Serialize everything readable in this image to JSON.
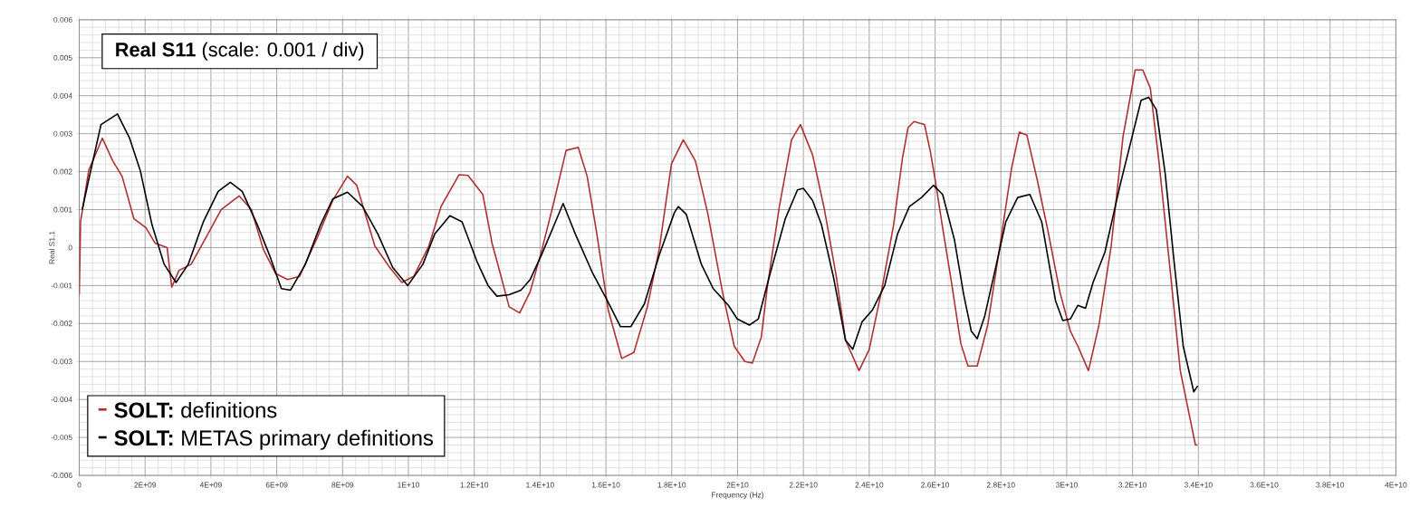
{
  "chart_data": {
    "type": "line",
    "title": "**Real S11** (scale: 0.001 / div)",
    "xlabel": "Frequency (Hz)",
    "ylabel": "Real S1,1",
    "xlim": [
      0,
      40000000000.0
    ],
    "ylim": [
      -0.006,
      0.006
    ],
    "xticks": [
      0,
      {
        "value": 2000000000.0,
        "label": "2E+09"
      },
      {
        "value": 4000000000.0,
        "label": "4E+09"
      },
      {
        "value": 6000000000.0,
        "label": "6E+09"
      },
      {
        "value": 8000000000.0,
        "label": "8E+09"
      },
      {
        "value": 10000000000.0,
        "label": "1E+10"
      },
      {
        "value": 12000000000.0,
        "label": "1.2E+10"
      },
      {
        "value": 14000000000.0,
        "label": "1.4E+10"
      },
      {
        "value": 16000000000.0,
        "label": "1.6E+10"
      },
      {
        "value": 18000000000.0,
        "label": "1.8E+10"
      },
      {
        "value": 20000000000.0,
        "label": "2E+10"
      },
      {
        "value": 22000000000.0,
        "label": "2.2E+10"
      },
      {
        "value": 24000000000.0,
        "label": "2.4E+10"
      },
      {
        "value": 26000000000.0,
        "label": "2.6E+10"
      },
      {
        "value": 28000000000.0,
        "label": "2.8E+10"
      },
      {
        "value": 30000000000.0,
        "label": "3E+10"
      },
      {
        "value": 32000000000.0,
        "label": "3.2E+10"
      },
      {
        "value": 34000000000.0,
        "label": "3.4E+10"
      },
      {
        "value": 36000000000.0,
        "label": "3.6E+10"
      },
      {
        "value": 38000000000.0,
        "label": "3.8E+10"
      },
      {
        "value": 40000000000.0,
        "label": "4E+10"
      }
    ],
    "yticks": [
      -0.006,
      -0.005,
      -0.004,
      -0.003,
      -0.002,
      -0.001,
      0,
      0.001,
      0.002,
      0.003,
      0.004,
      0.005,
      0.006
    ],
    "grid": true,
    "legend": "bottom left",
    "series": [
      {
        "name": "**SOLT:** definitions",
        "color": "#b03030",
        "x": [
          0,
          40000000.0,
          290000000.0,
          700000000.0,
          1020000000.0,
          1300000000.0,
          1660000000.0,
          2030000000.0,
          2300000000.0,
          2670000000.0,
          2810000000.0,
          3030000000.0,
          3400000000.0,
          3860000000.0,
          4310000000.0,
          4860000000.0,
          5230000000.0,
          5590000000.0,
          5960000000.0,
          6330000000.0,
          6690000000.0,
          7240000000.0,
          7700000000.0,
          8150000000.0,
          8430000000.0,
          8980000000.0,
          9430000000.0,
          9800000000.0,
          10160000000.0,
          10620000000.0,
          10990000000.0,
          11540000000.0,
          11810000000.0,
          12260000000.0,
          12540000000.0,
          12790000000.0,
          13060000000.0,
          13380000000.0,
          13700000000.0,
          14060000000.0,
          14430000000.0,
          14790000000.0,
          15160000000.0,
          15430000000.0,
          15710000000.0,
          16070000000.0,
          16480000000.0,
          16850000000.0,
          17260000000.0,
          17620000000.0,
          17990000000.0,
          18350000000.0,
          18720000000.0,
          19090000000.0,
          19540000000.0,
          19900000000.0,
          20220000000.0,
          20450000000.0,
          20720000000.0,
          20910000000.0,
          21270000000.0,
          21640000000.0,
          21910000000.0,
          22280000000.0,
          22640000000.0,
          23000000000.0,
          23280000000.0,
          23690000000.0,
          24000000000.0,
          24370000000.0,
          24740000000.0,
          25010000000.0,
          25180000000.0,
          25360000000.0,
          25680000000.0,
          25860000000.0,
          26000000000.0,
          26230000000.0,
          26500000000.0,
          26780000000.0,
          27000000000.0,
          27280000000.0,
          27600000000.0,
          27970000000.0,
          28330000000.0,
          28560000000.0,
          28790000000.0,
          29100000000.0,
          29430000000.0,
          29790000000.0,
          30110000000.0,
          30340000000.0,
          30660000000.0,
          30980000000.0,
          31350000000.0,
          31710000000.0,
          32080000000.0,
          32310000000.0,
          32540000000.0,
          32810000000.0,
          33180000000.0,
          33450000000.0,
          33910000000.0,
          33980000000.0
        ],
        "values": [
          -0.00124,
          0.00068,
          0.00204,
          0.00288,
          0.00228,
          0.00188,
          0.00076,
          0.00052,
          0.00012,
          0,
          -0.00104,
          -0.0006,
          -0.00044,
          0.00028,
          0.001,
          0.00136,
          0.001,
          -4e-05,
          -0.00068,
          -0.00084,
          -0.00076,
          0.00028,
          0.00124,
          0.00188,
          0.00164,
          4e-05,
          -0.00052,
          -0.00092,
          -0.00076,
          4e-05,
          0.00108,
          0.00192,
          0.0019,
          0.0014,
          0.00012,
          -0.00068,
          -0.00156,
          -0.00172,
          -0.00116,
          -4e-05,
          0.00124,
          0.00256,
          0.00264,
          0.00188,
          0.00044,
          -0.00164,
          -0.00292,
          -0.00276,
          -0.00156,
          -4e-05,
          0.0022,
          0.00284,
          0.00228,
          0.00092,
          -0.00116,
          -0.0026,
          -0.003,
          -0.00304,
          -0.00236,
          -0.001,
          0.00108,
          0.00284,
          0.00324,
          0.00244,
          0.001,
          -0.00076,
          -0.00244,
          -0.00324,
          -0.00268,
          -0.00116,
          0.0006,
          0.00236,
          0.00316,
          0.00332,
          0.00324,
          0.00252,
          0.0018,
          0.00052,
          -0.00092,
          -0.00252,
          -0.00312,
          -0.00312,
          -0.00204,
          4e-05,
          0.00212,
          0.00304,
          0.00296,
          0.0018,
          0.00044,
          -0.00116,
          -0.0022,
          -0.0026,
          -0.00324,
          -0.00204,
          4e-05,
          0.00292,
          0.00468,
          0.00468,
          0.0042,
          0.0022,
          -0.00092,
          -0.00324,
          -0.0052,
          -0.0052
        ]
      },
      {
        "name": "**SOLT:** METAS primary definitions",
        "color": "#000000",
        "x": [
          90000000.0,
          290000000.0,
          660000000.0,
          1160000000.0,
          1530000000.0,
          1850000000.0,
          2210000000.0,
          2580000000.0,
          2940000000.0,
          3310000000.0,
          3770000000.0,
          4220000000.0,
          4590000000.0,
          4950000000.0,
          5410000000.0,
          5780000000.0,
          6140000000.0,
          6420000000.0,
          6870000000.0,
          7330000000.0,
          7700000000.0,
          8150000000.0,
          8610000000.0,
          9070000000.0,
          9520000000.0,
          9980000000.0,
          10440000000.0,
          10800000000.0,
          11260000000.0,
          11630000000.0,
          12080000000.0,
          12420000000.0,
          12690000000.0,
          13060000000.0,
          13420000000.0,
          13700000000.0,
          14060000000.0,
          14430000000.0,
          14700000000.0,
          15070000000.0,
          15600000000.0,
          16070000000.0,
          16440000000.0,
          16760000000.0,
          17170000000.0,
          17620000000.0,
          18080000000.0,
          18200000000.0,
          18440000000.0,
          18900000000.0,
          19260000000.0,
          19720000000.0,
          19990000000.0,
          20360000000.0,
          20630000000.0,
          20990000000.0,
          21450000000.0,
          21820000000.0,
          22000000000.0,
          22280000000.0,
          22550000000.0,
          22910000000.0,
          23280000000.0,
          23500000000.0,
          23780000000.0,
          24100000000.0,
          24470000000.0,
          24860000000.0,
          25220000000.0,
          25590000000.0,
          25950000000.0,
          26230000000.0,
          26590000000.0,
          26870000000.0,
          27100000000.0,
          27280000000.0,
          27510000000.0,
          27780000000.0,
          28150000000.0,
          28510000000.0,
          28880000000.0,
          29240000000.0,
          29660000000.0,
          29880000000.0,
          30110000000.0,
          30340000000.0,
          30570000000.0,
          30800000000.0,
          31160000000.0,
          31620000000.0,
          31940000000.0,
          32260000000.0,
          32490000000.0,
          32720000000.0,
          32990000000.0,
          33270000000.0,
          33540000000.0,
          33860000000.0,
          33980000000.0
        ],
        "values": [
          0.001,
          0.0018,
          0.00324,
          0.00352,
          0.00288,
          0.00204,
          0.0006,
          -0.00044,
          -0.00092,
          -0.00044,
          0.00068,
          0.00148,
          0.00172,
          0.00148,
          0.0006,
          -0.0002,
          -0.00108,
          -0.00112,
          -0.00044,
          0.0006,
          0.00128,
          0.00146,
          0.00108,
          0.00036,
          -0.00052,
          -0.001,
          -0.00044,
          0.00036,
          0.00084,
          0.00068,
          -0.00036,
          -0.001,
          -0.00128,
          -0.00124,
          -0.00112,
          -0.00084,
          -0.00016,
          0.0006,
          0.00116,
          0.00036,
          -0.00068,
          -0.00144,
          -0.00208,
          -0.00208,
          -0.00148,
          -0.0002,
          0.00092,
          0.00108,
          0.00088,
          -0.00044,
          -0.00108,
          -0.00152,
          -0.00188,
          -0.00204,
          -0.00188,
          -0.00068,
          0.00076,
          0.00152,
          0.00156,
          0.00124,
          0.0006,
          -0.00076,
          -0.00244,
          -0.00268,
          -0.00196,
          -0.00164,
          -0.001,
          0.00036,
          0.00108,
          0.00132,
          0.00164,
          0.0014,
          0.0002,
          -0.00124,
          -0.0022,
          -0.0024,
          -0.0018,
          -0.00076,
          0.00068,
          0.00132,
          0.0014,
          0.00068,
          -0.0014,
          -0.00192,
          -0.00188,
          -0.00152,
          -0.0016,
          -0.00092,
          -0.00012,
          0.00164,
          0.00276,
          0.00388,
          0.00396,
          0.00364,
          0.00196,
          -0.00044,
          -0.0026,
          -0.0038,
          -0.00364
        ]
      }
    ]
  }
}
